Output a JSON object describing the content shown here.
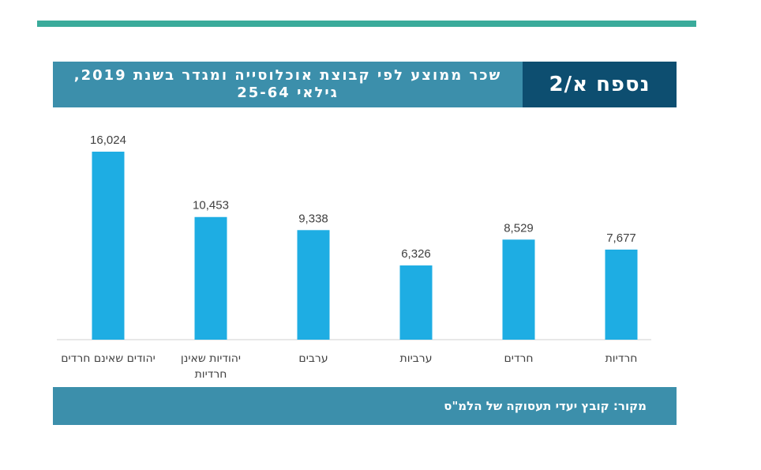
{
  "header": {
    "appendix_label": "נספח א/2",
    "title": "שכר ממוצע לפי קבוצת אוכלוסייה ומגדר בשנת 2019, גילאי 25-64"
  },
  "source": "מקור: קובץ יעדי תעסוקה של הלמ\"ס",
  "colors": {
    "bar": "#1eade3",
    "title_bar": "#3c8fab",
    "tag_box": "#0d4e70",
    "top_rule": "#3aab9b"
  },
  "chart_data": {
    "type": "bar",
    "title": "",
    "xlabel": "",
    "ylabel": "",
    "grid": false,
    "ylim": [
      0,
      17000
    ],
    "categories": [
      [
        "יהודים שאינם חרדים"
      ],
      [
        "יהודיות שאינן",
        "חרדיות"
      ],
      [
        "ערבים"
      ],
      [
        "ערביות"
      ],
      [
        "חרדים"
      ],
      [
        "חרדיות"
      ]
    ],
    "values": [
      16024,
      10453,
      9338,
      6326,
      8529,
      7677
    ],
    "value_labels": [
      "16,024",
      "10,453",
      "9,338",
      "6,326",
      "8,529",
      "7,677"
    ]
  }
}
